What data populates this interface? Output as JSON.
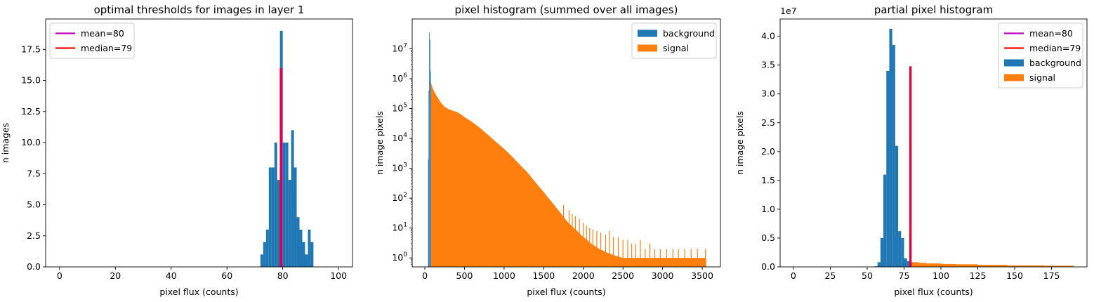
{
  "chart_data": [
    {
      "type": "bar",
      "title": "optimal thresholds for images in layer 1",
      "xlabel": "pixel flux (counts)",
      "ylabel": "n images",
      "xlim": [
        -5,
        105
      ],
      "ylim": [
        0,
        19.95
      ],
      "xscale": "linear",
      "yscale": "linear",
      "xticks": [
        0,
        20,
        40,
        60,
        80,
        100
      ],
      "xtick_labels": [
        "0",
        "20",
        "40",
        "60",
        "80",
        "100"
      ],
      "yticks": [
        0,
        2.5,
        5,
        7.5,
        10,
        12.5,
        15,
        17.5
      ],
      "ytick_labels": [
        "0.0",
        "2.5",
        "5.0",
        "7.5",
        "10.0",
        "12.5",
        "15.0",
        "17.5"
      ],
      "grid": false,
      "legend_position": "upper left",
      "legend": [
        {
          "label": "mean=80",
          "kind": "line",
          "color": "#bf00bf"
        },
        {
          "label": "median=79",
          "kind": "line",
          "color": "#ff0000"
        }
      ],
      "histograms": [
        {
          "color": "#1f77b4",
          "bins": [
            {
              "x0": 72.0,
              "x1": 73.0,
              "y": 1
            },
            {
              "x0": 73.0,
              "x1": 74.0,
              "y": 2
            },
            {
              "x0": 74.0,
              "x1": 75.0,
              "y": 3
            },
            {
              "x0": 75.0,
              "x1": 76.0,
              "y": 8
            },
            {
              "x0": 76.0,
              "x1": 77.0,
              "y": 8
            },
            {
              "x0": 77.0,
              "x1": 78.0,
              "y": 10
            },
            {
              "x0": 78.0,
              "x1": 79.0,
              "y": 7
            },
            {
              "x0": 79.0,
              "x1": 80.0,
              "y": 19
            },
            {
              "x0": 80.0,
              "x1": 81.0,
              "y": 10
            },
            {
              "x0": 81.0,
              "x1": 82.0,
              "y": 10
            },
            {
              "x0": 82.0,
              "x1": 83.0,
              "y": 7
            },
            {
              "x0": 83.0,
              "x1": 84.0,
              "y": 11
            },
            {
              "x0": 84.0,
              "x1": 85.0,
              "y": 8
            },
            {
              "x0": 85.0,
              "x1": 86.0,
              "y": 4
            },
            {
              "x0": 86.0,
              "x1": 87.0,
              "y": 3
            },
            {
              "x0": 87.0,
              "x1": 88.0,
              "y": 2
            },
            {
              "x0": 88.0,
              "x1": 89.0,
              "y": 1
            },
            {
              "x0": 89.0,
              "x1": 90.0,
              "y": 3
            },
            {
              "x0": 90.0,
              "x1": 91.0,
              "y": 2
            }
          ]
        }
      ],
      "vlines": [
        {
          "x": 79.3,
          "y0": 0,
          "y1": 16,
          "color": "#ff0000",
          "width": 3
        },
        {
          "x": 79.7,
          "y0": 0,
          "y1": 16,
          "color": "#bf00bf",
          "width": 2
        }
      ]
    },
    {
      "type": "bar",
      "title": "pixel histogram (summed over all images)",
      "xlabel": "pixel flux (counts)",
      "ylabel": "n image pixels",
      "xlim": [
        -160,
        3730
      ],
      "ylim": [
        0.5,
        100000000
      ],
      "xscale": "linear",
      "yscale": "log",
      "xticks": [
        0,
        500,
        1000,
        1500,
        2000,
        2500,
        3000,
        3500
      ],
      "xtick_labels": [
        "0",
        "500",
        "1000",
        "1500",
        "2000",
        "2500",
        "3000",
        "3500"
      ],
      "yticks": [
        1,
        10,
        100,
        1000,
        10000,
        100000,
        1000000,
        10000000
      ],
      "ytick_exponents": [
        "0",
        "1",
        "2",
        "3",
        "4",
        "5",
        "6",
        "7"
      ],
      "ytick_base": "10",
      "grid": false,
      "legend_position": "upper right",
      "legend": [
        {
          "label": "background",
          "kind": "patch",
          "color": "#1f77b4"
        },
        {
          "label": "signal",
          "kind": "patch",
          "color": "#ff7f0e"
        }
      ],
      "histograms": [
        {
          "color": "#1f77b4",
          "bins": [
            {
              "x0": 40,
              "x1": 47,
              "y": 2000
            },
            {
              "x0": 47,
              "x1": 54,
              "y": 400000
            },
            {
              "x0": 54,
              "x1": 61,
              "y": 35000000
            },
            {
              "x0": 61,
              "x1": 68,
              "y": 20000000
            },
            {
              "x0": 68,
              "x1": 75,
              "y": 1800000
            }
          ]
        }
      ],
      "envelopes": [
        {
          "color": "#ff7f0e",
          "points": [
            [
              75,
              800000
            ],
            [
              80,
              700000
            ],
            [
              90,
              560000
            ],
            [
              100,
              470000
            ],
            [
              120,
              360000
            ],
            [
              150,
              260000
            ],
            [
              200,
              160000
            ],
            [
              250,
              115000
            ],
            [
              300,
              95000
            ],
            [
              350,
              85000
            ],
            [
              400,
              78000
            ],
            [
              450,
              65000
            ],
            [
              500,
              52000
            ],
            [
              600,
              35000
            ],
            [
              700,
              22000
            ],
            [
              800,
              13000
            ],
            [
              900,
              7500
            ],
            [
              1000,
              4500
            ],
            [
              1100,
              2500
            ],
            [
              1200,
              1300
            ],
            [
              1300,
              700
            ],
            [
              1400,
              330
            ],
            [
              1500,
              160
            ],
            [
              1600,
              75
            ],
            [
              1700,
              35
            ],
            [
              1800,
              16
            ],
            [
              1900,
              9
            ],
            [
              2000,
              5
            ],
            [
              2100,
              3
            ],
            [
              2200,
              2
            ],
            [
              2300,
              1.5
            ],
            [
              2400,
              1.2
            ],
            [
              2500,
              1
            ],
            [
              2600,
              1
            ],
            [
              2700,
              1
            ],
            [
              3000,
              1
            ],
            [
              3550,
              1
            ]
          ],
          "spikes": [
            [
              1750,
              60
            ],
            [
              1820,
              40
            ],
            [
              1860,
              30
            ],
            [
              1900,
              25
            ],
            [
              1950,
              20
            ],
            [
              2000,
              15
            ],
            [
              2040,
              12
            ],
            [
              2080,
              10
            ],
            [
              2120,
              9
            ],
            [
              2170,
              8
            ],
            [
              2220,
              7
            ],
            [
              2280,
              6
            ],
            [
              2330,
              8
            ],
            [
              2380,
              5
            ],
            [
              2440,
              5
            ],
            [
              2500,
              4
            ],
            [
              2560,
              4
            ],
            [
              2610,
              3
            ],
            [
              2660,
              3
            ],
            [
              2720,
              4
            ],
            [
              2780,
              2
            ],
            [
              2840,
              3
            ],
            [
              2900,
              2
            ],
            [
              2970,
              2
            ],
            [
              3050,
              2
            ],
            [
              3130,
              2
            ],
            [
              3200,
              2
            ],
            [
              3280,
              2
            ],
            [
              3360,
              2
            ],
            [
              3440,
              2
            ],
            [
              3540,
              2
            ]
          ]
        }
      ]
    },
    {
      "type": "bar",
      "title": "partial pixel histogram",
      "xlabel": "pixel flux (counts)",
      "ylabel": "n image pixels",
      "scale_label": "1e7",
      "xlim": [
        -9,
        199
      ],
      "ylim": [
        0,
        4.3
      ],
      "xscale": "linear",
      "yscale": "linear",
      "xticks": [
        0,
        25,
        50,
        75,
        100,
        125,
        150,
        175
      ],
      "xtick_labels": [
        "0",
        "25",
        "50",
        "75",
        "100",
        "125",
        "150",
        "175"
      ],
      "yticks": [
        0,
        0.5,
        1,
        1.5,
        2,
        2.5,
        3,
        3.5,
        4
      ],
      "ytick_labels": [
        "0.0",
        "0.5",
        "1.0",
        "1.5",
        "2.0",
        "2.5",
        "3.0",
        "3.5",
        "4.0"
      ],
      "grid": false,
      "legend_position": "upper right",
      "legend": [
        {
          "label": "mean=80",
          "kind": "line",
          "color": "#bf00bf"
        },
        {
          "label": "median=79",
          "kind": "line",
          "color": "#ff0000"
        },
        {
          "label": "background",
          "kind": "patch",
          "color": "#1f77b4"
        },
        {
          "label": "signal",
          "kind": "patch",
          "color": "#ff7f0e"
        }
      ],
      "histograms": [
        {
          "color": "#1f77b4",
          "bins": [
            {
              "x0": 55,
              "x1": 57,
              "y": 0.01
            },
            {
              "x0": 57,
              "x1": 59,
              "y": 0.08
            },
            {
              "x0": 59,
              "x1": 61,
              "y": 0.5
            },
            {
              "x0": 61,
              "x1": 63,
              "y": 1.6
            },
            {
              "x0": 63,
              "x1": 65,
              "y": 3.4
            },
            {
              "x0": 65,
              "x1": 67,
              "y": 4.13
            },
            {
              "x0": 67,
              "x1": 69,
              "y": 3.85
            },
            {
              "x0": 69,
              "x1": 71,
              "y": 2.1
            },
            {
              "x0": 71,
              "x1": 73,
              "y": 0.62
            },
            {
              "x0": 73,
              "x1": 75,
              "y": 0.5
            },
            {
              "x0": 75,
              "x1": 77,
              "y": 0.15
            },
            {
              "x0": 77,
              "x1": 79,
              "y": 0.1
            }
          ]
        },
        {
          "color": "#ff7f0e",
          "bins": [
            {
              "x0": 80,
              "x1": 85,
              "y": 0.08
            },
            {
              "x0": 85,
              "x1": 90,
              "y": 0.07
            },
            {
              "x0": 90,
              "x1": 100,
              "y": 0.06
            },
            {
              "x0": 100,
              "x1": 110,
              "y": 0.05
            },
            {
              "x0": 110,
              "x1": 125,
              "y": 0.045
            },
            {
              "x0": 125,
              "x1": 145,
              "y": 0.035
            },
            {
              "x0": 145,
              "x1": 170,
              "y": 0.025
            },
            {
              "x0": 170,
              "x1": 190,
              "y": 0.02
            }
          ]
        }
      ],
      "vlines": [
        {
          "x": 79.3,
          "y0": 0,
          "y1": 3.48,
          "color": "#ff0000",
          "width": 3
        },
        {
          "x": 79.7,
          "y0": 0,
          "y1": 3.48,
          "color": "#d4006a",
          "width": 2
        }
      ]
    }
  ]
}
